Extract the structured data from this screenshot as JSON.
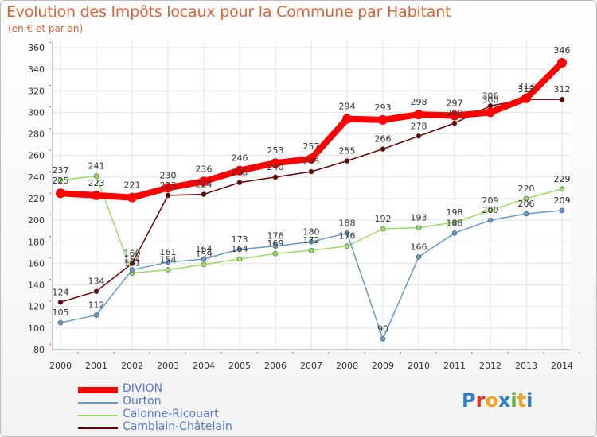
{
  "header": {
    "title": "Evolution des Impôts locaux pour la Commune par Habitant",
    "subtitle": "(en € et par an)"
  },
  "logo": {
    "letters": [
      "P",
      "r",
      "o",
      "x",
      "i",
      "t",
      "i"
    ],
    "colors": [
      "#2e7fc4",
      "#e0342a",
      "#f2a21c",
      "#2e7fc4",
      "#5cb531",
      "#f2a21c",
      "#2e7fc4"
    ]
  },
  "chart_data": {
    "type": "line",
    "x": [
      "2000",
      "2001",
      "2002",
      "2003",
      "2004",
      "2005",
      "2006",
      "2007",
      "2008",
      "2009",
      "2010",
      "2011",
      "2012",
      "2013",
      "2014"
    ],
    "ylim": [
      80,
      360
    ],
    "yticks": [
      "80",
      "100",
      "120",
      "140",
      "160",
      "180",
      "200",
      "220",
      "240",
      "260",
      "280",
      "300",
      "320",
      "340",
      "360"
    ],
    "grid": true,
    "legend_position": "bottom-left",
    "series": [
      {
        "name": "DIVION",
        "color": "#ff0000",
        "values": [
          225,
          223,
          221,
          230,
          236,
          246,
          253,
          257,
          294,
          293,
          298,
          297,
          300,
          313,
          346
        ]
      },
      {
        "name": "Ourton",
        "color": "#6699cc",
        "values": [
          105,
          112,
          154,
          161,
          164,
          173,
          176,
          180,
          188,
          90,
          166,
          188,
          200,
          206,
          209
        ]
      },
      {
        "name": "Calonne-Ricouart",
        "color": "#99dd66",
        "values": [
          237,
          241,
          151,
          154,
          159,
          164,
          169,
          172,
          176,
          192,
          193,
          198,
          209,
          220,
          229
        ]
      },
      {
        "name": "Camblain-Châtelain",
        "color": "#660000",
        "values": [
          124,
          134,
          160,
          223,
          224,
          235,
          240,
          245,
          255,
          266,
          278,
          290,
          306,
          312,
          312
        ]
      }
    ]
  }
}
